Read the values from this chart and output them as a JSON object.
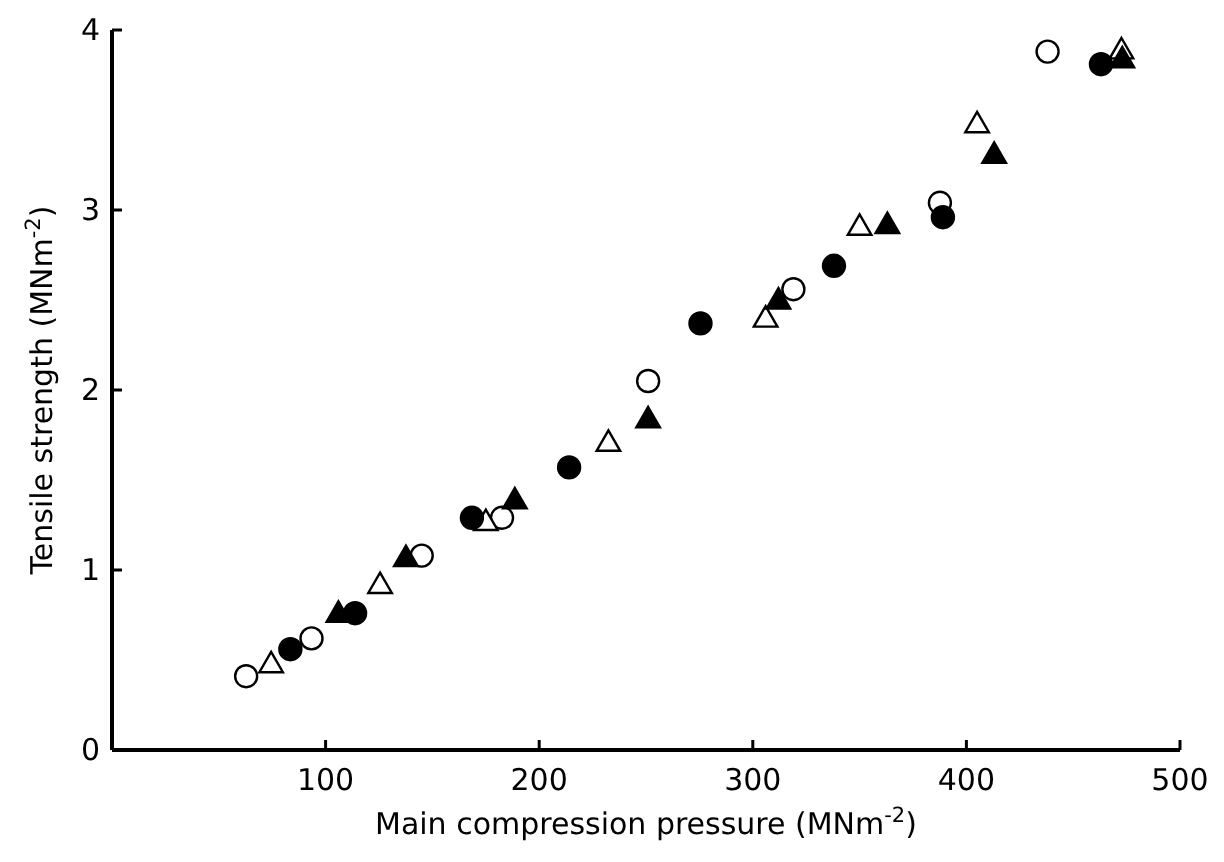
{
  "chart_data": {
    "type": "scatter",
    "xlabel": "Main compression pressure (MNm$^{-2}$)",
    "ylabel": "Tensile strength (MNm$^{-2}$)",
    "xlim": [
      0,
      500
    ],
    "ylim": [
      0,
      4
    ],
    "xticks": [
      {
        "value": 0,
        "label": null
      },
      100,
      200,
      300,
      400,
      500
    ],
    "yticks": [
      0,
      1,
      2,
      3,
      4
    ],
    "grid": false,
    "series": [
      {
        "color": "#ffffff",
        "marker": "circle",
        "x": [
          62.8,
          93.4,
          145,
          182.6,
          251,
          319,
          387.6,
          438
        ],
        "values": [
          0.41,
          0.62,
          1.08,
          1.29,
          2.05,
          2.56,
          3.04,
          3.88
        ]
      },
      {
        "color": "#ffffff",
        "marker": "triangle",
        "x": [
          74.5,
          125.5,
          175,
          232.4,
          306,
          350,
          405,
          472.6
        ],
        "values": [
          0.47,
          0.91,
          1.26,
          1.7,
          2.39,
          2.9,
          3.47,
          3.88
        ]
      },
      {
        "color": "#000000",
        "marker": "circle",
        "x": [
          83.5,
          113.8,
          168.5,
          214,
          275.5,
          338,
          389,
          463
        ],
        "values": [
          0.56,
          0.76,
          1.29,
          1.57,
          2.37,
          2.69,
          2.96,
          3.81
        ]
      },
      {
        "color": "#000000",
        "marker": "triangle",
        "x": [
          106,
          137.6,
          188.6,
          251,
          312,
          363,
          413,
          473
        ],
        "values": [
          0.75,
          1.06,
          1.38,
          1.83,
          2.49,
          2.91,
          3.3,
          3.83
        ]
      }
    ]
  }
}
